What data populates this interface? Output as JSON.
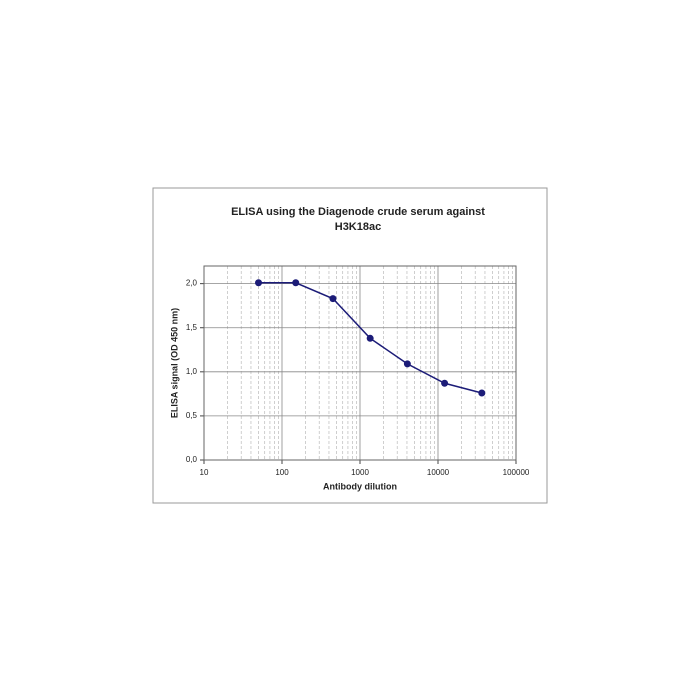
{
  "chart_data": {
    "type": "line",
    "title": [
      "ELISA using the Diagenode crude serum against",
      "H3K18ac"
    ],
    "x_label": "Antibody dilution",
    "y_label": "ELISA signal (OD 450 nm)",
    "x": [
      50,
      150,
      450,
      1350,
      4050,
      12150,
      36450
    ],
    "series": [
      {
        "name": "H3K18ac",
        "color": "#1c1c78",
        "values": [
          2.01,
          2.01,
          1.83,
          1.38,
          1.09,
          0.87,
          0.76
        ]
      }
    ],
    "xlim": [
      10,
      100000
    ],
    "xticks": [
      10,
      100,
      1000,
      10000,
      100000
    ],
    "x_log": true,
    "ylim": [
      0,
      2.2
    ],
    "yticks": [
      {
        "value": 0,
        "label": "0,0"
      },
      {
        "value": 0.5,
        "label": "0,5"
      },
      {
        "value": 1,
        "label": "1,0"
      },
      {
        "value": 1.5,
        "label": "1,5"
      },
      {
        "value": 2,
        "label": "2,0"
      }
    ],
    "grid": true
  }
}
